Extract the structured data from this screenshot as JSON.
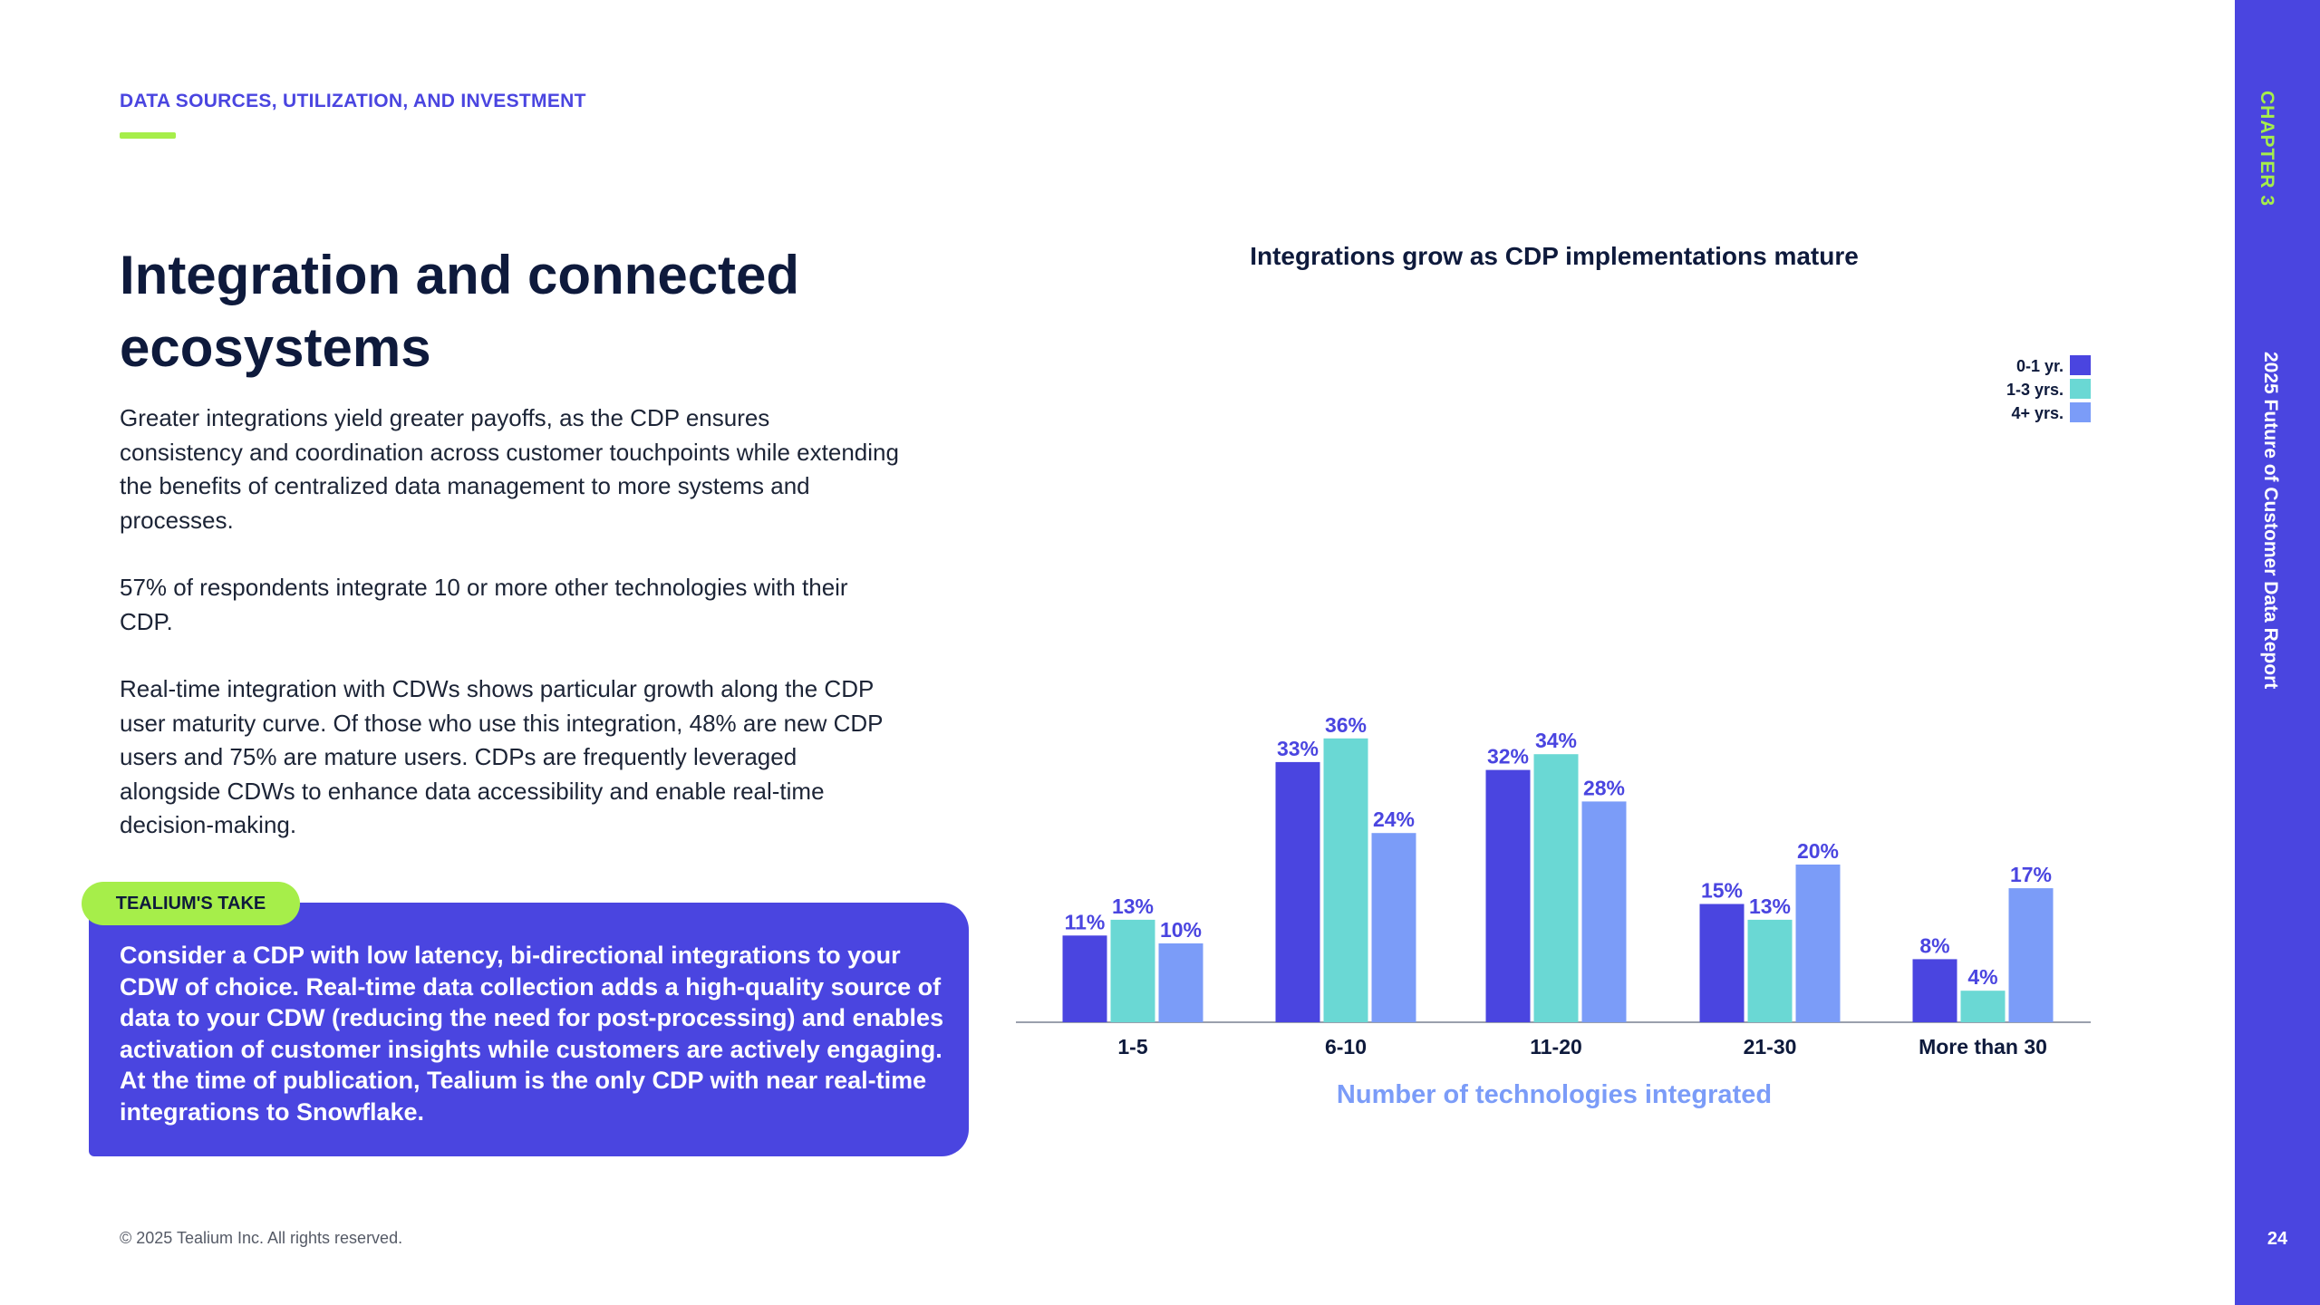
{
  "header": {
    "section_label": "DATA SOURCES, UTILIZATION, AND INVESTMENT"
  },
  "title": "Integration and connected ecosystems",
  "paragraphs": [
    "Greater integrations yield greater payoffs, as the CDP ensures consistency and coordination across customer touchpoints while extending the benefits of centralized data management to more systems and processes.",
    "57% of respondents integrate 10 or more other technologies with their CDP.",
    "Real-time integration with CDWs shows particular growth along the CDP user maturity curve. Of those who use this integration, 48% are new CDP users and 75% are mature users. CDPs are frequently leveraged alongside CDWs to enhance data accessibility and enable real-time decision-making."
  ],
  "take": {
    "label": "TEALIUM'S TAKE",
    "text": "Consider a CDP with low latency, bi-directional integrations to your CDW of choice. Real-time data collection adds a high-quality source of data to your CDW (reducing the need for post-processing) and enables activation of customer insights while customers are actively engaging. At the time of publication, Tealium is the only CDP with near real-time integrations to Snowflake."
  },
  "footer": {
    "copyright": "© 2025 Tealium Inc. All rights reserved.",
    "page_number": "24"
  },
  "sidebar": {
    "chapter": "CHAPTER 3",
    "report_title": "2025 Future of Customer Data Report"
  },
  "colors": {
    "brand": "#4a45e0",
    "accent": "#a6ee4a",
    "teal": "#6ad8d4",
    "light_blue": "#7b9cf8",
    "xlabel": "#7b9cf8"
  },
  "chart_data": {
    "type": "bar",
    "title": "Integrations grow as CDP implementations mature",
    "xlabel": "Number of technologies integrated",
    "ylabel": "",
    "ylim": [
      0,
      40
    ],
    "grid": false,
    "legend_position": "top-right",
    "categories": [
      "1-5",
      "6-10",
      "11-20",
      "21-30",
      "More than 30"
    ],
    "series": [
      {
        "name": "0-1 yr.",
        "color": "#4a45e0",
        "values": [
          11,
          33,
          32,
          15,
          8
        ]
      },
      {
        "name": "1-3 yrs.",
        "color": "#6ad8d4",
        "values": [
          13,
          36,
          34,
          13,
          4
        ]
      },
      {
        "name": "4+ yrs.",
        "color": "#7b9cf8",
        "values": [
          10,
          24,
          28,
          20,
          17
        ]
      }
    ],
    "value_suffix": "%"
  }
}
